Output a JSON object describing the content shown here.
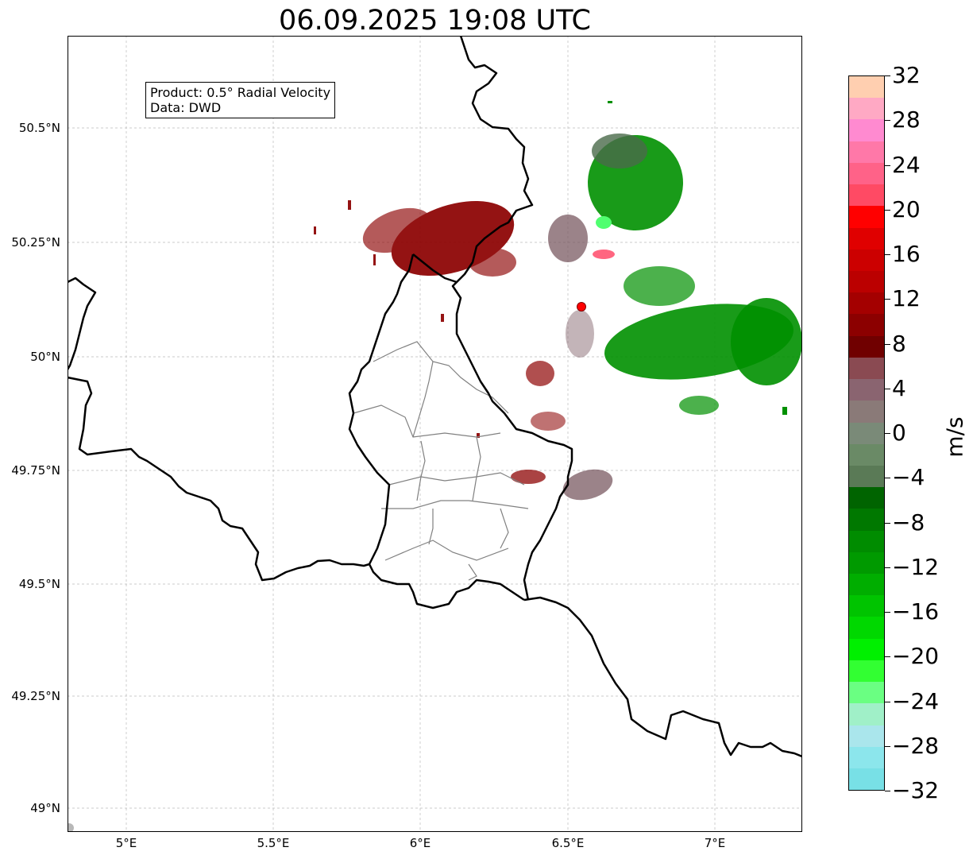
{
  "title": "06.09.2025 19:08 UTC",
  "info": {
    "product": "Product: 0.5° Radial Velocity",
    "source": "Data: DWD"
  },
  "axes": {
    "lat_labels": [
      "50.5°N",
      "50.25°N",
      "50°N",
      "49.75°N",
      "49.5°N",
      "49.25°N",
      "49°N"
    ],
    "lon_labels": [
      "5°E",
      "5.5°E",
      "6°E",
      "6.5°E",
      "7°E"
    ]
  },
  "map": {
    "extent": {
      "lon_min": 4.8,
      "lon_max": 7.3,
      "lat_min": 48.95,
      "lat_max": 50.7
    },
    "radar_site": {
      "lon": 6.55,
      "lat": 50.11
    },
    "grid": true,
    "layers": [
      "country-borders",
      "district-borders",
      "radial-velocity"
    ]
  },
  "colorbar": {
    "label": "m/s",
    "min": -32,
    "max": 32,
    "ticks": [
      "32",
      "28",
      "24",
      "20",
      "16",
      "12",
      "8",
      "4",
      "0",
      "−4",
      "−8",
      "−12",
      "−16",
      "−20",
      "−24",
      "−28",
      "−32"
    ],
    "colors_top_to_bottom": [
      "#ffcfb0",
      "#ffa9c4",
      "#ff8ad0",
      "#ff78a8",
      "#ff6288",
      "#ff4a64",
      "#ff0000",
      "#e00000",
      "#cc0000",
      "#bb0000",
      "#a40000",
      "#8c0000",
      "#700000",
      "#8a4a52",
      "#8a6470",
      "#8a7a78",
      "#7a8a78",
      "#6a8a66",
      "#5a7a56",
      "#006400",
      "#007800",
      "#008c00",
      "#009a00",
      "#00ae00",
      "#00c400",
      "#00d800",
      "#00f000",
      "#32ff32",
      "#6aff82",
      "#a0f0c8",
      "#aae6ec",
      "#8ce6ec",
      "#78e0e6"
    ]
  }
}
